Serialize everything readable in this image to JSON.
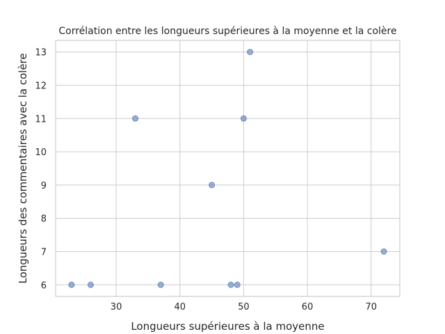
{
  "chart_data": {
    "type": "scatter",
    "title": "Corrélation entre les longueurs supérieures à la moyenne et la colère",
    "xlabel": "Longueurs supérieures à la moyenne",
    "ylabel": "Longueurs des commentaires avec la colère",
    "xlim": [
      20.5,
      74.5
    ],
    "ylim": [
      5.65,
      13.35
    ],
    "xticks": [
      30,
      40,
      50,
      60,
      70
    ],
    "yticks": [
      6,
      7,
      8,
      9,
      10,
      11,
      12,
      13
    ],
    "grid": true,
    "point_color": "#4c72b0",
    "points": [
      {
        "x": 23,
        "y": 6
      },
      {
        "x": 26,
        "y": 6
      },
      {
        "x": 33,
        "y": 11
      },
      {
        "x": 37,
        "y": 6
      },
      {
        "x": 45,
        "y": 9
      },
      {
        "x": 48,
        "y": 6
      },
      {
        "x": 49,
        "y": 6
      },
      {
        "x": 50,
        "y": 11
      },
      {
        "x": 51,
        "y": 13
      },
      {
        "x": 72,
        "y": 7
      }
    ]
  }
}
